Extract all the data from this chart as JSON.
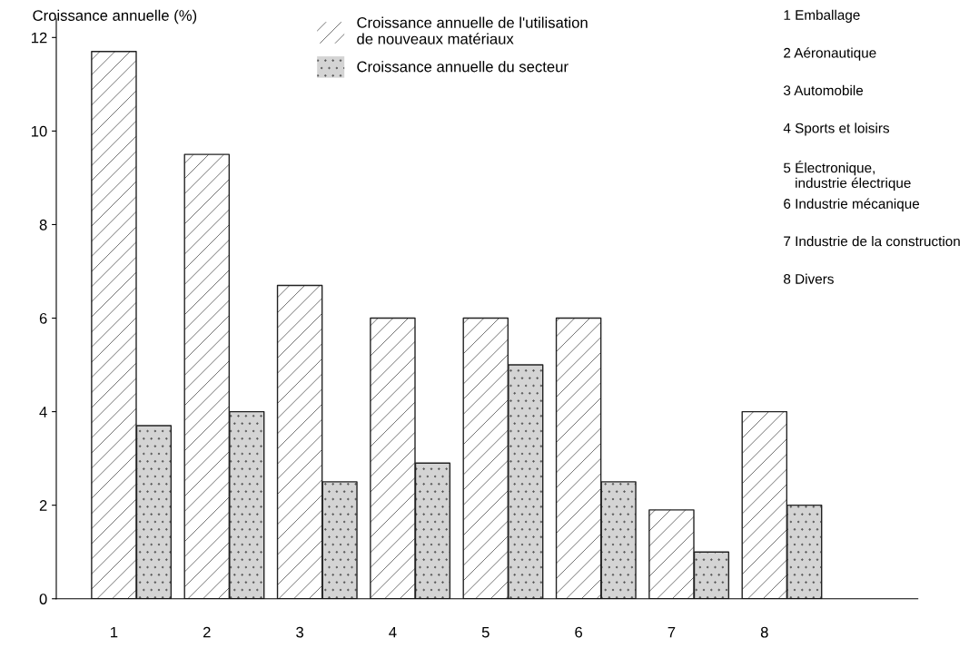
{
  "chart_data": {
    "type": "bar",
    "ylabel": "Croissance annuelle (%)",
    "categories": [
      "1",
      "2",
      "3",
      "4",
      "5",
      "6",
      "7",
      "8"
    ],
    "series": [
      {
        "name": "Croissance annuelle de l'utilisation\nde nouveaux matériaux",
        "color": "#ffffff",
        "values": [
          11.7,
          9.5,
          6.7,
          6,
          6,
          6,
          1.9,
          4
        ]
      },
      {
        "name": "Croissance annuelle du secteur",
        "color": "#d4d4d4",
        "values": [
          3.7,
          4,
          2.5,
          2.9,
          5,
          2.5,
          1,
          2
        ]
      }
    ],
    "ylim": [
      0,
      12.4
    ],
    "yticks": [
      0,
      2,
      4,
      6,
      8,
      10,
      12
    ],
    "grid": false,
    "legend": "top",
    "annotations": [
      "1 Emballage",
      "2 Aéronautique",
      "3 Automobile",
      "4 Sports et loisirs",
      "5 Électronique,\n   industrie électrique",
      "6 Industrie mécanique",
      "7 Industrie de la construction",
      "8 Divers"
    ]
  }
}
